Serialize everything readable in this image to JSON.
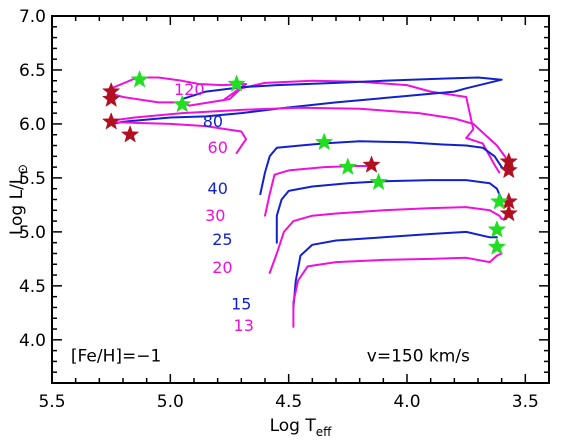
{
  "chart_data": {
    "type": "line",
    "title": "",
    "xlabel": {
      "base": "Log T",
      "sub": "eff"
    },
    "ylabel": {
      "base": "Log L/L",
      "sub": "⊙"
    },
    "xlim": [
      5.5,
      3.4
    ],
    "ylim": [
      3.6,
      7.0
    ],
    "x_reversed": true,
    "x_ticks": [
      5.5,
      5.0,
      4.5,
      4.0,
      3.5
    ],
    "x_tick_labels": [
      "5.5",
      "5.0",
      "4.5",
      "4.0",
      "3.5"
    ],
    "y_ticks": [
      4.0,
      4.5,
      5.0,
      5.5,
      6.0,
      6.5,
      7.0
    ],
    "y_tick_labels": [
      "4.0",
      "4.5",
      "5.0",
      "5.5",
      "6.0",
      "6.5",
      "7.0"
    ],
    "grid": false,
    "annotations": [
      {
        "text": "[Fe/H]=−1",
        "x": 5.42,
        "y": 3.8
      },
      {
        "text": "v=150 km/s",
        "x": 4.17,
        "y": 3.8
      }
    ],
    "colors": {
      "pink": "#ee11dd",
      "blue": "#1122cc",
      "red_star": "#b01020",
      "green_star": "#22dd22",
      "axis": "#000000"
    },
    "series": [
      {
        "name": "120",
        "color": "#ee11dd",
        "label_pos": [
          4.92,
          6.27
        ],
        "x": [
          4.77,
          4.68,
          4.78,
          4.88,
          4.95,
          5.05,
          5.1,
          5.15,
          5.25,
          5.25,
          5.2,
          5.05,
          4.95,
          4.92,
          4.75,
          4.7,
          4.6,
          4.4,
          4.2,
          4.0,
          3.9,
          3.75,
          3.72,
          3.75,
          3.68,
          3.63,
          3.61
        ],
        "y": [
          6.23,
          6.37,
          6.36,
          6.37,
          6.4,
          6.43,
          6.43,
          6.42,
          6.33,
          6.28,
          6.25,
          6.2,
          6.2,
          6.17,
          6.23,
          6.33,
          6.38,
          6.4,
          6.39,
          6.36,
          6.3,
          6.25,
          5.95,
          5.87,
          5.82,
          5.62,
          5.55
        ]
      },
      {
        "name": "80",
        "color": "#1122cc",
        "label_pos": [
          4.82,
          5.97
        ],
        "x": [
          4.95,
          4.85,
          4.7,
          4.55,
          4.3,
          4.1,
          3.85,
          3.7,
          3.6,
          3.75,
          3.8,
          4.05,
          4.3,
          4.55,
          4.7,
          4.85,
          5.0,
          5.1,
          5.2,
          5.25
        ],
        "y": [
          6.23,
          6.3,
          6.34,
          6.36,
          6.38,
          6.4,
          6.42,
          6.43,
          6.41,
          6.33,
          6.3,
          6.25,
          6.2,
          6.14,
          6.1,
          6.07,
          6.06,
          6.04,
          6.02,
          6.0
        ]
      },
      {
        "name": "60",
        "color": "#ee11dd",
        "label_pos": [
          4.8,
          5.73
        ],
        "x": [
          4.72,
          4.68,
          4.7,
          4.85,
          5.0,
          5.15,
          5.25,
          5.25,
          5.15,
          4.95,
          4.7,
          4.45,
          4.2,
          3.95,
          3.8,
          3.72,
          3.62,
          3.58
        ],
        "y": [
          5.73,
          5.86,
          5.93,
          5.98,
          6.0,
          6.01,
          6.02,
          6.03,
          6.06,
          6.1,
          6.13,
          6.15,
          6.14,
          6.1,
          6.05,
          6.0,
          5.8,
          5.68
        ]
      },
      {
        "name": "40",
        "color": "#1122cc",
        "label_pos": [
          4.8,
          5.35
        ],
        "x": [
          4.62,
          4.6,
          4.58,
          4.55,
          4.45,
          4.35,
          4.2,
          4.0,
          3.85,
          3.75,
          3.68,
          3.63,
          3.6,
          3.58
        ],
        "y": [
          5.35,
          5.55,
          5.7,
          5.78,
          5.8,
          5.82,
          5.84,
          5.83,
          5.81,
          5.8,
          5.78,
          5.7,
          5.6,
          5.57
        ]
      },
      {
        "name": "30",
        "color": "#ee11dd",
        "label_pos": [
          4.81,
          5.1
        ],
        "x": [
          4.6,
          4.58,
          4.56,
          4.5,
          4.35,
          4.22,
          4.17,
          4.15
        ],
        "y": [
          5.15,
          5.35,
          5.53,
          5.57,
          5.6,
          5.61,
          5.61,
          5.62
        ]
      },
      {
        "name": "25",
        "color": "#1122cc",
        "label_pos": [
          4.78,
          4.88
        ],
        "x": [
          4.55,
          4.55,
          4.53,
          4.5,
          4.4,
          4.25,
          4.1,
          3.9,
          3.75,
          3.65,
          3.62,
          3.6,
          3.58
        ],
        "y": [
          4.9,
          5.15,
          5.3,
          5.38,
          5.42,
          5.45,
          5.47,
          5.48,
          5.48,
          5.45,
          5.4,
          5.3,
          5.28
        ]
      },
      {
        "name": "20",
        "color": "#ee11dd",
        "label_pos": [
          4.78,
          4.62
        ],
        "x": [
          4.58,
          4.55,
          4.52,
          4.48,
          4.4,
          4.3,
          4.1,
          3.9,
          3.75,
          3.65,
          3.61,
          3.6,
          3.58
        ],
        "y": [
          4.62,
          4.8,
          5.0,
          5.1,
          5.15,
          5.17,
          5.2,
          5.22,
          5.23,
          5.2,
          5.15,
          5.12,
          5.12
        ]
      },
      {
        "name": "15",
        "color": "#1122cc",
        "label_pos": [
          4.7,
          4.28
        ],
        "x": [
          4.48,
          4.47,
          4.45,
          4.4,
          4.3,
          4.1,
          3.9,
          3.75,
          3.65,
          3.62
        ],
        "y": [
          4.3,
          4.55,
          4.78,
          4.88,
          4.92,
          4.95,
          4.98,
          5.0,
          4.95,
          4.95
        ]
      },
      {
        "name": "13",
        "color": "#ee11dd",
        "label_pos": [
          4.69,
          4.08
        ],
        "x": [
          4.48,
          4.48,
          4.46,
          4.42,
          4.3,
          4.1,
          3.9,
          3.75,
          3.65,
          3.62,
          3.6
        ],
        "y": [
          4.12,
          4.35,
          4.55,
          4.68,
          4.72,
          4.74,
          4.75,
          4.76,
          4.72,
          4.78,
          4.8
        ]
      }
    ],
    "markers": [
      {
        "symbol": "star",
        "color": "#b01020",
        "x": 5.25,
        "y": 6.3
      },
      {
        "symbol": "star",
        "color": "#b01020",
        "x": 5.25,
        "y": 6.23
      },
      {
        "symbol": "star",
        "color": "#b01020",
        "x": 5.25,
        "y": 6.02
      },
      {
        "symbol": "star",
        "color": "#b01020",
        "x": 5.17,
        "y": 5.9
      },
      {
        "symbol": "star",
        "color": "#b01020",
        "x": 4.15,
        "y": 5.62
      },
      {
        "symbol": "star",
        "color": "#b01020",
        "x": 3.57,
        "y": 5.65
      },
      {
        "symbol": "star",
        "color": "#b01020",
        "x": 3.57,
        "y": 5.57
      },
      {
        "symbol": "star",
        "color": "#b01020",
        "x": 3.57,
        "y": 5.28
      },
      {
        "symbol": "star",
        "color": "#b01020",
        "x": 3.57,
        "y": 5.17
      },
      {
        "symbol": "star",
        "color": "#22dd22",
        "x": 5.13,
        "y": 6.41
      },
      {
        "symbol": "star",
        "color": "#22dd22",
        "x": 4.72,
        "y": 6.37
      },
      {
        "symbol": "star",
        "color": "#22dd22",
        "x": 4.95,
        "y": 6.18
      },
      {
        "symbol": "star",
        "color": "#22dd22",
        "x": 4.35,
        "y": 5.83
      },
      {
        "symbol": "star",
        "color": "#22dd22",
        "x": 4.25,
        "y": 5.6
      },
      {
        "symbol": "star",
        "color": "#22dd22",
        "x": 4.12,
        "y": 5.46
      },
      {
        "symbol": "star",
        "color": "#22dd22",
        "x": 3.61,
        "y": 5.28
      },
      {
        "symbol": "star",
        "color": "#22dd22",
        "x": 3.62,
        "y": 5.02
      },
      {
        "symbol": "star",
        "color": "#22dd22",
        "x": 3.62,
        "y": 4.86
      }
    ]
  }
}
